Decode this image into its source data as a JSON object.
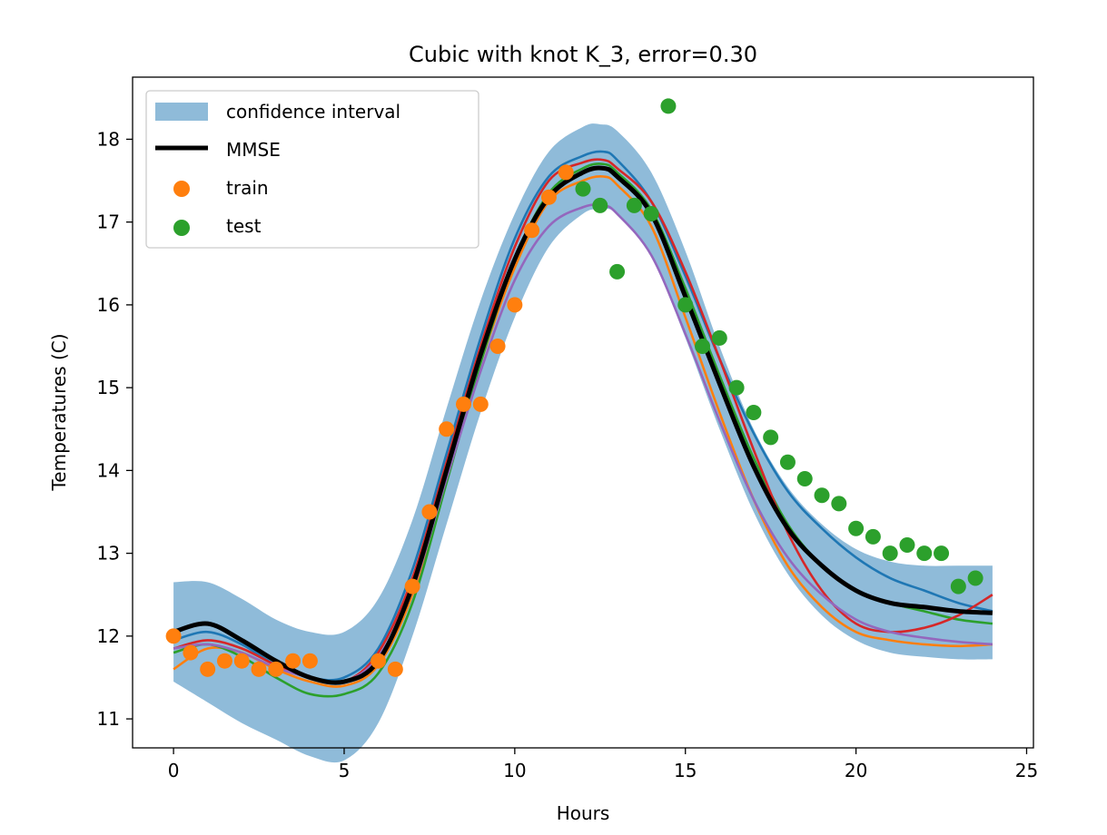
{
  "chart_data": {
    "type": "line",
    "title": "Cubic with knot K_3, error=0.30",
    "xlabel": "Hours",
    "ylabel": "Temperatures (C)",
    "xlim": [
      -1.2,
      25.2
    ],
    "ylim": [
      10.65,
      18.75
    ],
    "xticks": [
      0,
      5,
      10,
      15,
      20,
      25
    ],
    "yticks": [
      11,
      12,
      13,
      14,
      15,
      16,
      17,
      18
    ],
    "grid": false,
    "legend": {
      "placement": "top-left",
      "entries": [
        "confidence interval",
        "MMSE",
        "train",
        "test"
      ]
    },
    "colors": {
      "band": "#8fbbd9",
      "mmse": "#000000",
      "train": "#ff7f0e",
      "test": "#2ca02c",
      "samples": [
        "#1f77b4",
        "#ff7f0e",
        "#2ca02c",
        "#d62728",
        "#9467bd"
      ]
    },
    "confidence_interval": {
      "x": [
        0,
        1,
        2,
        3,
        4,
        5,
        6,
        7,
        8,
        9,
        10,
        11,
        12,
        12.5,
        13,
        14,
        15,
        16,
        17,
        18,
        19,
        20,
        21,
        22,
        23,
        24
      ],
      "upper": [
        12.65,
        12.65,
        12.45,
        12.2,
        12.05,
        12.05,
        12.45,
        13.4,
        14.75,
        16.05,
        17.1,
        17.85,
        18.15,
        18.18,
        18.1,
        17.6,
        16.65,
        15.5,
        14.5,
        13.8,
        13.35,
        13.05,
        12.9,
        12.85,
        12.85,
        12.85
      ],
      "lower": [
        11.45,
        11.2,
        10.95,
        10.75,
        10.55,
        10.5,
        10.95,
        12.0,
        13.35,
        14.7,
        15.85,
        16.7,
        17.1,
        17.15,
        17.1,
        16.6,
        15.6,
        14.5,
        13.5,
        12.75,
        12.25,
        11.95,
        11.8,
        11.75,
        11.72,
        11.72
      ]
    },
    "mmse": {
      "name": "MMSE",
      "x": [
        0,
        1,
        2,
        3,
        4,
        5,
        6,
        7,
        8,
        9,
        10,
        11,
        12,
        12.6,
        13,
        14,
        15,
        16,
        17,
        18,
        19,
        20,
        21,
        22,
        23,
        24
      ],
      "y": [
        12.05,
        12.15,
        11.95,
        11.7,
        11.5,
        11.45,
        11.7,
        12.6,
        14.0,
        15.4,
        16.55,
        17.3,
        17.6,
        17.65,
        17.55,
        17.1,
        16.1,
        15.05,
        14.05,
        13.3,
        12.85,
        12.55,
        12.4,
        12.35,
        12.3,
        12.28
      ]
    },
    "samples": [
      {
        "x": [
          0,
          1,
          2,
          3,
          4,
          5,
          6,
          7,
          8,
          9,
          10,
          11,
          12,
          12.6,
          13,
          14,
          15,
          16,
          17,
          18,
          19,
          20,
          21,
          22,
          23,
          24
        ],
        "y": [
          11.95,
          12.05,
          11.9,
          11.65,
          11.5,
          11.5,
          11.85,
          12.8,
          14.2,
          15.6,
          16.8,
          17.55,
          17.8,
          17.85,
          17.75,
          17.25,
          16.35,
          15.35,
          14.45,
          13.75,
          13.3,
          12.95,
          12.7,
          12.55,
          12.4,
          12.3
        ]
      },
      {
        "x": [
          0,
          1,
          2,
          3,
          4,
          5,
          6,
          7,
          8,
          9,
          10,
          11,
          12,
          12.6,
          13,
          14,
          15,
          16,
          17,
          18,
          19,
          20,
          21,
          22,
          23,
          24
        ],
        "y": [
          11.6,
          11.85,
          11.8,
          11.6,
          11.45,
          11.4,
          11.65,
          12.5,
          13.9,
          15.3,
          16.45,
          17.25,
          17.5,
          17.55,
          17.45,
          16.95,
          15.85,
          14.7,
          13.65,
          12.85,
          12.35,
          12.05,
          11.95,
          11.9,
          11.88,
          11.9
        ]
      },
      {
        "x": [
          0,
          1,
          2,
          3,
          4,
          5,
          6,
          7,
          8,
          9,
          10,
          11,
          12,
          12.6,
          13,
          14,
          15,
          16,
          17,
          18,
          19,
          20,
          21,
          22,
          23,
          24
        ],
        "y": [
          11.8,
          11.9,
          11.75,
          11.5,
          11.3,
          11.3,
          11.55,
          12.4,
          13.85,
          15.3,
          16.55,
          17.35,
          17.65,
          17.7,
          17.6,
          17.15,
          16.2,
          15.15,
          14.15,
          13.35,
          12.85,
          12.55,
          12.4,
          12.3,
          12.2,
          12.15
        ]
      },
      {
        "x": [
          0,
          1,
          2,
          3,
          4,
          5,
          6,
          7,
          8,
          9,
          10,
          11,
          12,
          12.6,
          13,
          14,
          15,
          16,
          17,
          18,
          19,
          20,
          21,
          22,
          23,
          24
        ],
        "y": [
          11.85,
          11.95,
          11.85,
          11.65,
          11.5,
          11.45,
          11.8,
          12.7,
          14.1,
          15.5,
          16.7,
          17.5,
          17.72,
          17.75,
          17.65,
          17.25,
          16.4,
          15.35,
          14.25,
          13.25,
          12.55,
          12.15,
          12.05,
          12.1,
          12.25,
          12.5
        ]
      },
      {
        "x": [
          0,
          1,
          2,
          3,
          4,
          5,
          6,
          7,
          8,
          9,
          10,
          11,
          12,
          12.6,
          13,
          14,
          15,
          16,
          17,
          18,
          19,
          20,
          21,
          22,
          23,
          24
        ],
        "y": [
          11.85,
          11.9,
          11.8,
          11.62,
          11.5,
          11.45,
          11.75,
          12.55,
          13.9,
          15.2,
          16.3,
          16.95,
          17.18,
          17.2,
          17.1,
          16.6,
          15.65,
          14.6,
          13.65,
          12.95,
          12.5,
          12.2,
          12.05,
          11.98,
          11.93,
          11.9
        ]
      }
    ],
    "train": {
      "name": "train",
      "points": [
        [
          0,
          12.0
        ],
        [
          0.5,
          11.8
        ],
        [
          1,
          11.6
        ],
        [
          1.5,
          11.7
        ],
        [
          2,
          11.7
        ],
        [
          2.5,
          11.6
        ],
        [
          3,
          11.6
        ],
        [
          3.5,
          11.7
        ],
        [
          4,
          11.7
        ],
        [
          6,
          11.7
        ],
        [
          6.5,
          11.6
        ],
        [
          7,
          12.6
        ],
        [
          7.5,
          13.5
        ],
        [
          8,
          14.5
        ],
        [
          8.5,
          14.8
        ],
        [
          9,
          14.8
        ],
        [
          9.5,
          15.5
        ],
        [
          10,
          16.0
        ],
        [
          10.5,
          16.9
        ],
        [
          11,
          17.3
        ],
        [
          11.5,
          17.6
        ]
      ]
    },
    "test": {
      "name": "test",
      "points": [
        [
          12,
          17.4
        ],
        [
          12.5,
          17.2
        ],
        [
          13,
          16.4
        ],
        [
          13.5,
          17.2
        ],
        [
          14,
          17.1
        ],
        [
          14.5,
          18.4
        ],
        [
          15,
          16.0
        ],
        [
          15.5,
          15.5
        ],
        [
          16,
          15.6
        ],
        [
          16.5,
          15.0
        ],
        [
          17,
          14.7
        ],
        [
          17.5,
          14.4
        ],
        [
          18,
          14.1
        ],
        [
          18.5,
          13.9
        ],
        [
          19,
          13.7
        ],
        [
          19.5,
          13.6
        ],
        [
          20,
          13.3
        ],
        [
          20.5,
          13.2
        ],
        [
          21,
          13.0
        ],
        [
          21.5,
          13.1
        ],
        [
          22,
          13.0
        ],
        [
          22.5,
          13.0
        ],
        [
          23,
          12.6
        ],
        [
          23.5,
          12.7
        ]
      ]
    }
  }
}
